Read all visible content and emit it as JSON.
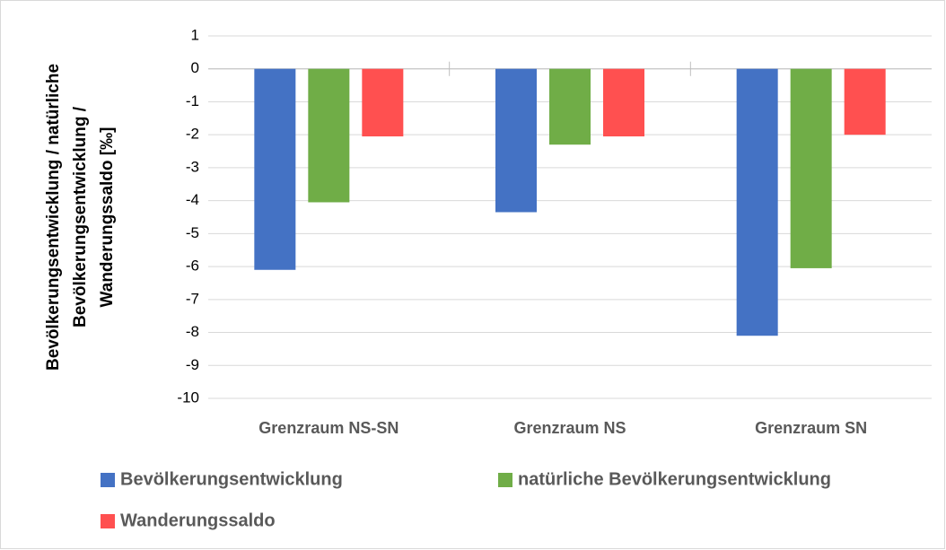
{
  "chart_data": {
    "type": "bar",
    "y_label": [
      "Bevölkerungsentwicklung / natürliche",
      "Bevölkerungsentwicklung /",
      "Wanderungssaldo [‰]"
    ],
    "categories": [
      "Grenzraum NS-SN",
      "Grenzraum NS",
      "Grenzraum SN"
    ],
    "series": [
      {
        "name": "Bevölkerungsentwicklung",
        "color": "#4472c4",
        "values": [
          -6.1,
          -4.35,
          -8.1
        ]
      },
      {
        "name": "natürliche Bevölkerungsentwicklung",
        "color": "#70ad47",
        "values": [
          -4.05,
          -2.3,
          -6.05
        ]
      },
      {
        "name": "Wanderungssaldo",
        "color": "#ff5050",
        "values": [
          -2.05,
          -2.05,
          -2.0
        ]
      }
    ],
    "ylim": [
      -10,
      1
    ],
    "yticks": [
      1,
      0,
      -1,
      -2,
      -3,
      -4,
      -5,
      -6,
      -7,
      -8,
      -9,
      -10
    ],
    "grid": true,
    "legend": "bottom"
  }
}
